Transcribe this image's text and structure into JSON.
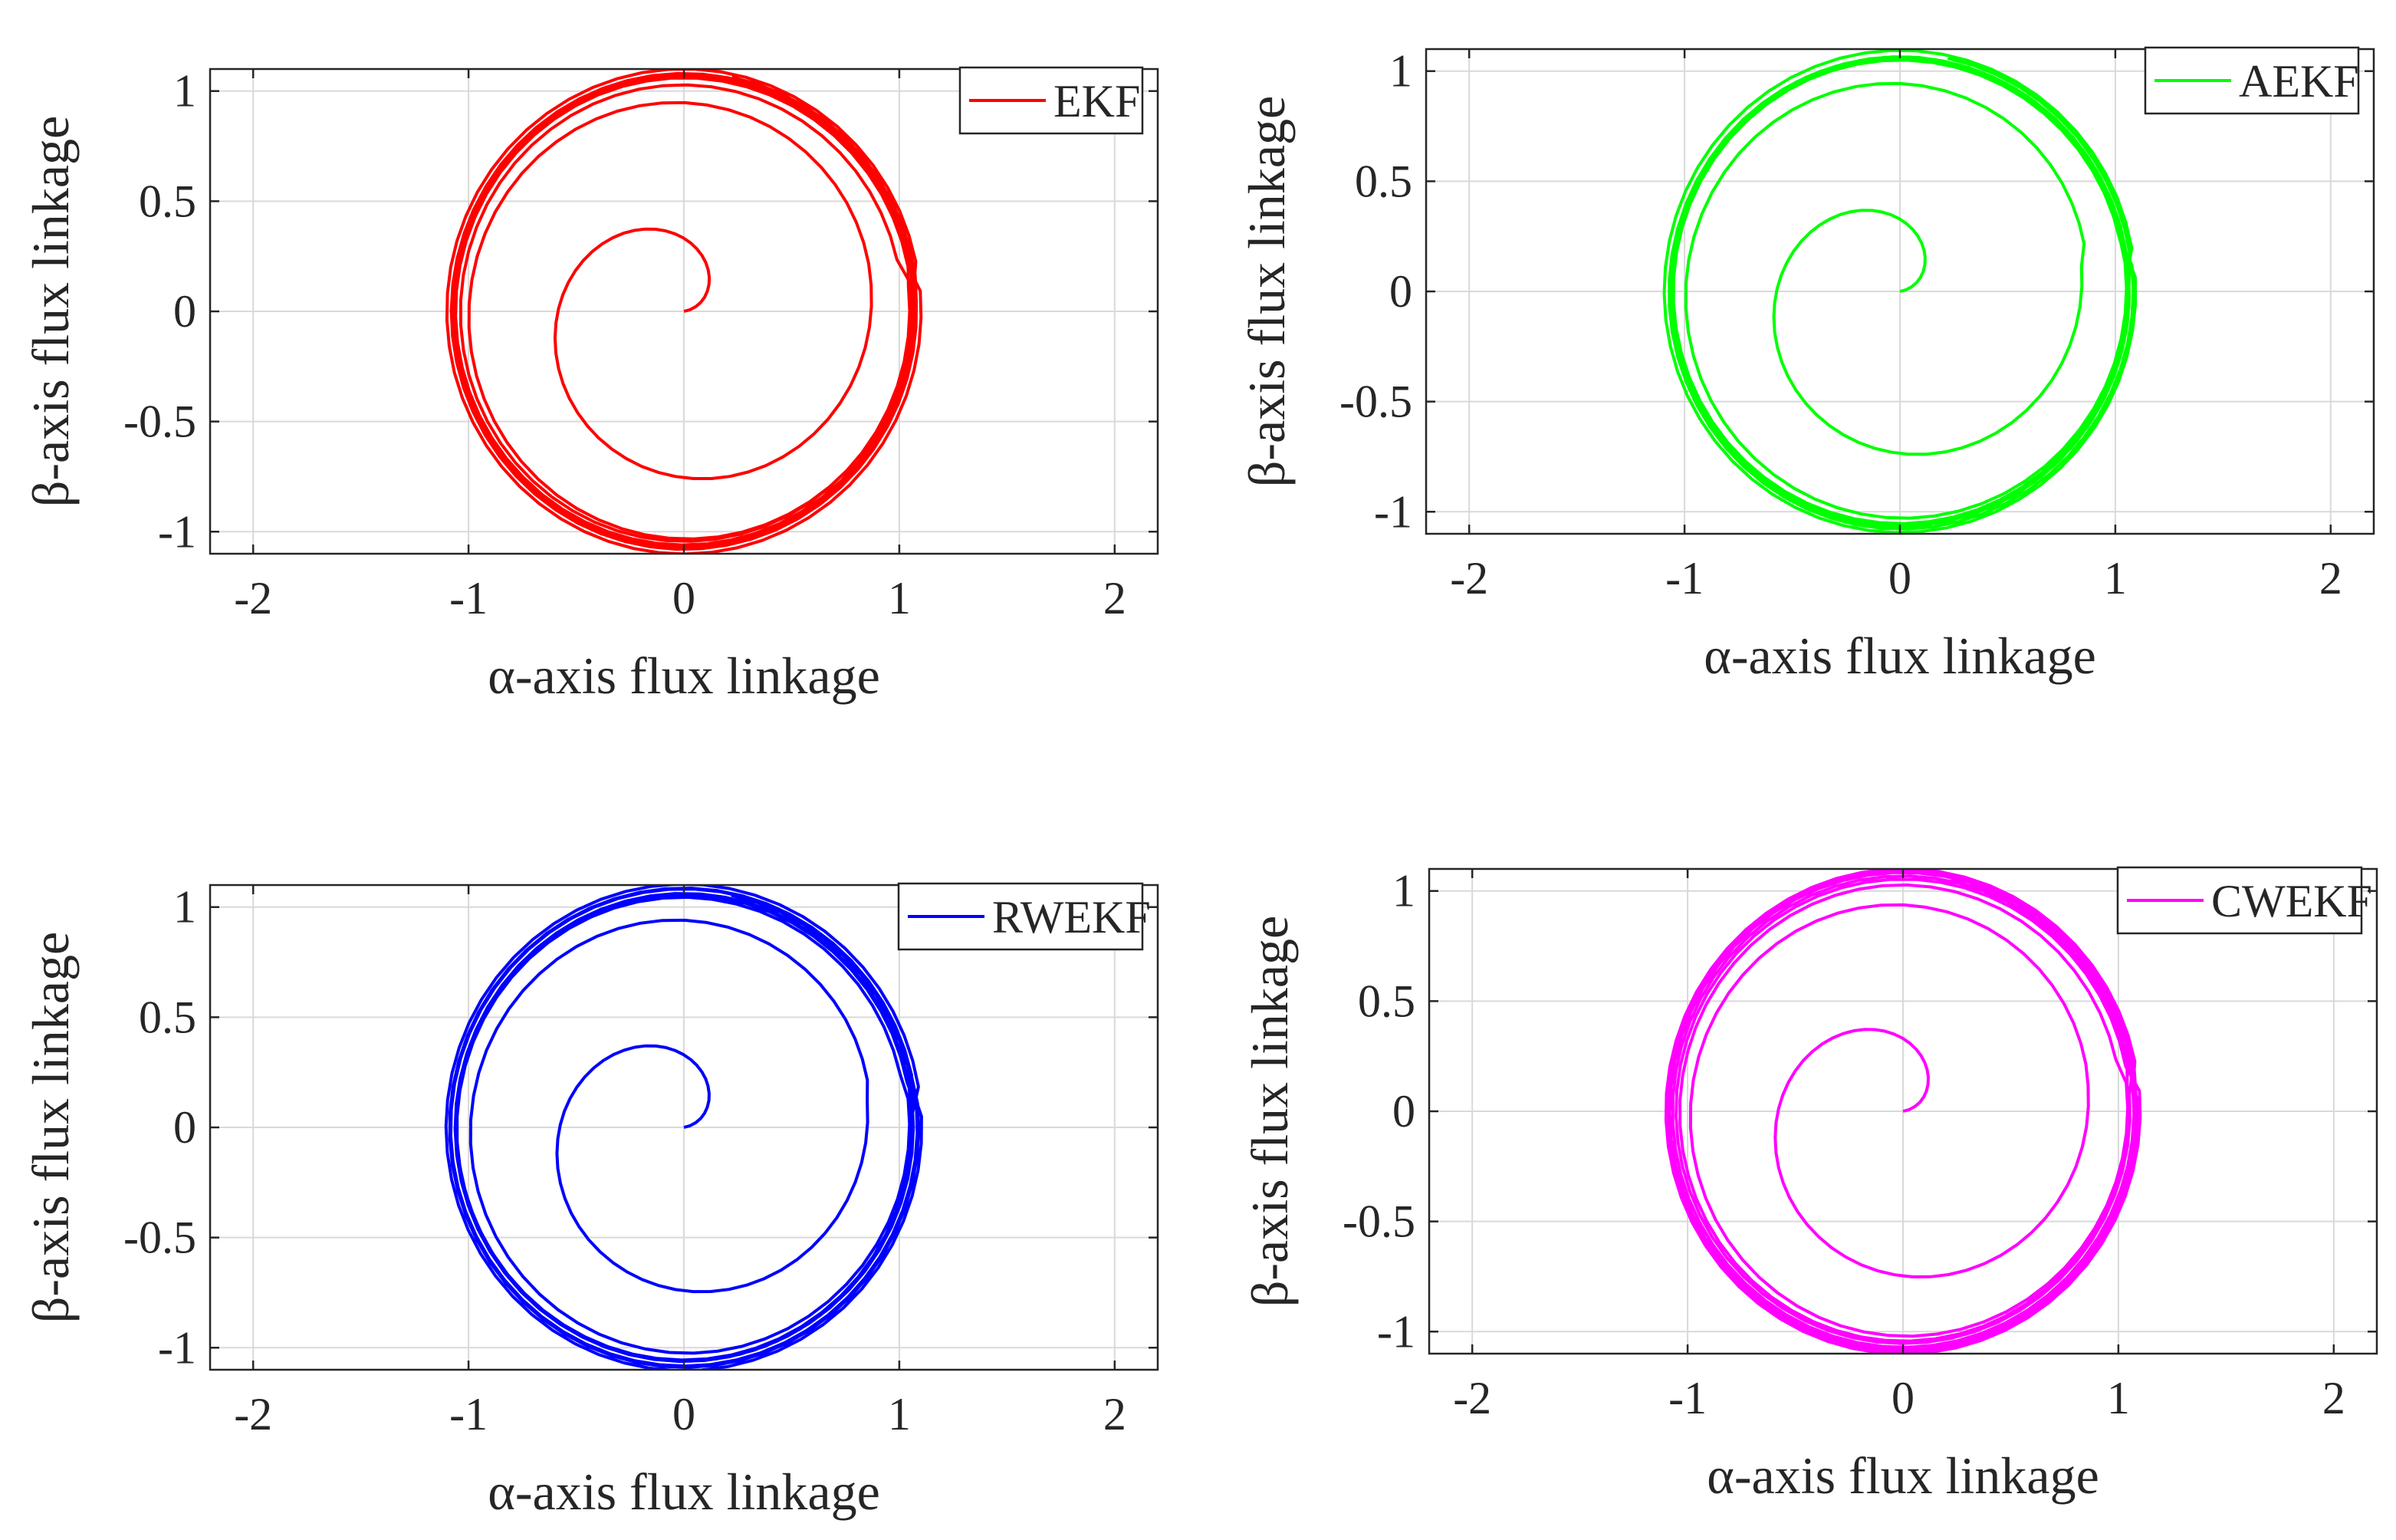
{
  "chart_data": [
    {
      "type": "line",
      "panel": "top-left",
      "legend": "top-right",
      "series": [
        {
          "name": "EKF",
          "color": "#ff0000"
        }
      ],
      "xlabel": "α-axis flux linkage",
      "ylabel": "β-axis flux linkage",
      "xlim": [
        -2.2,
        2.2
      ],
      "ylim": [
        -1.1,
        1.1
      ],
      "xticks": [
        -2,
        -1,
        0,
        1,
        2
      ],
      "xtick_labels": [
        "-2",
        "-1",
        "0",
        "1",
        "2"
      ],
      "yticks": [
        -1,
        -0.5,
        0,
        0.5,
        1
      ],
      "ytick_labels": [
        "-1",
        "-0.5",
        "0",
        "0.5",
        "1"
      ],
      "grid": true,
      "trajectory": {
        "shape": "spiral-converging-to-circle",
        "steady_radius": 1.08,
        "start": [
          0,
          0
        ]
      }
    },
    {
      "type": "line",
      "panel": "top-right",
      "legend": "top-right",
      "series": [
        {
          "name": "AEKF",
          "color": "#00ff00"
        }
      ],
      "xlabel": "α-axis flux linkage",
      "ylabel": "β-axis flux linkage",
      "xlim": [
        -2.2,
        2.2
      ],
      "ylim": [
        -1.1,
        1.1
      ],
      "xticks": [
        -2,
        -1,
        0,
        1,
        2
      ],
      "xtick_labels": [
        "-2",
        "-1",
        "0",
        "1",
        "2"
      ],
      "yticks": [
        -1,
        -0.5,
        0,
        0.5,
        1
      ],
      "ytick_labels": [
        "-1",
        "-0.5",
        "0",
        "0.5",
        "1"
      ],
      "grid": true,
      "trajectory": {
        "shape": "spiral-converging-to-circle",
        "steady_radius": 1.08,
        "start": [
          0,
          0
        ]
      }
    },
    {
      "type": "line",
      "panel": "bottom-left",
      "legend": "top-right",
      "series": [
        {
          "name": "RWEKF",
          "color": "#0000ff"
        }
      ],
      "xlabel": "α-axis flux linkage",
      "ylabel": "β-axis flux linkage",
      "xlim": [
        -2.2,
        2.2
      ],
      "ylim": [
        -1.1,
        1.1
      ],
      "xticks": [
        -2,
        -1,
        0,
        1,
        2
      ],
      "xtick_labels": [
        "-2",
        "-1",
        "0",
        "1",
        "2"
      ],
      "yticks": [
        -1,
        -0.5,
        0,
        0.5,
        1
      ],
      "ytick_labels": [
        "-1",
        "-0.5",
        "0",
        "0.5",
        "1"
      ],
      "grid": true,
      "trajectory": {
        "shape": "spiral-converging-to-circle",
        "steady_radius": 1.08,
        "start": [
          0,
          0
        ]
      }
    },
    {
      "type": "line",
      "panel": "bottom-right",
      "legend": "top-right",
      "series": [
        {
          "name": "CWEKF",
          "color": "#ff00ff"
        }
      ],
      "xlabel": "α-axis flux linkage",
      "ylabel": "β-axis flux linkage",
      "xlim": [
        -2.2,
        2.2
      ],
      "ylim": [
        -1.1,
        1.1
      ],
      "xticks": [
        -2,
        -1,
        0,
        1,
        2
      ],
      "xtick_labels": [
        "-2",
        "-1",
        "0",
        "1",
        "2"
      ],
      "yticks": [
        -1,
        -0.5,
        0,
        0.5,
        1
      ],
      "ytick_labels": [
        "-1",
        "-0.5",
        "0",
        "0.5",
        "1"
      ],
      "grid": true,
      "trajectory": {
        "shape": "spiral-converging-to-circle",
        "steady_radius": 1.08,
        "start": [
          0,
          0
        ]
      }
    }
  ]
}
